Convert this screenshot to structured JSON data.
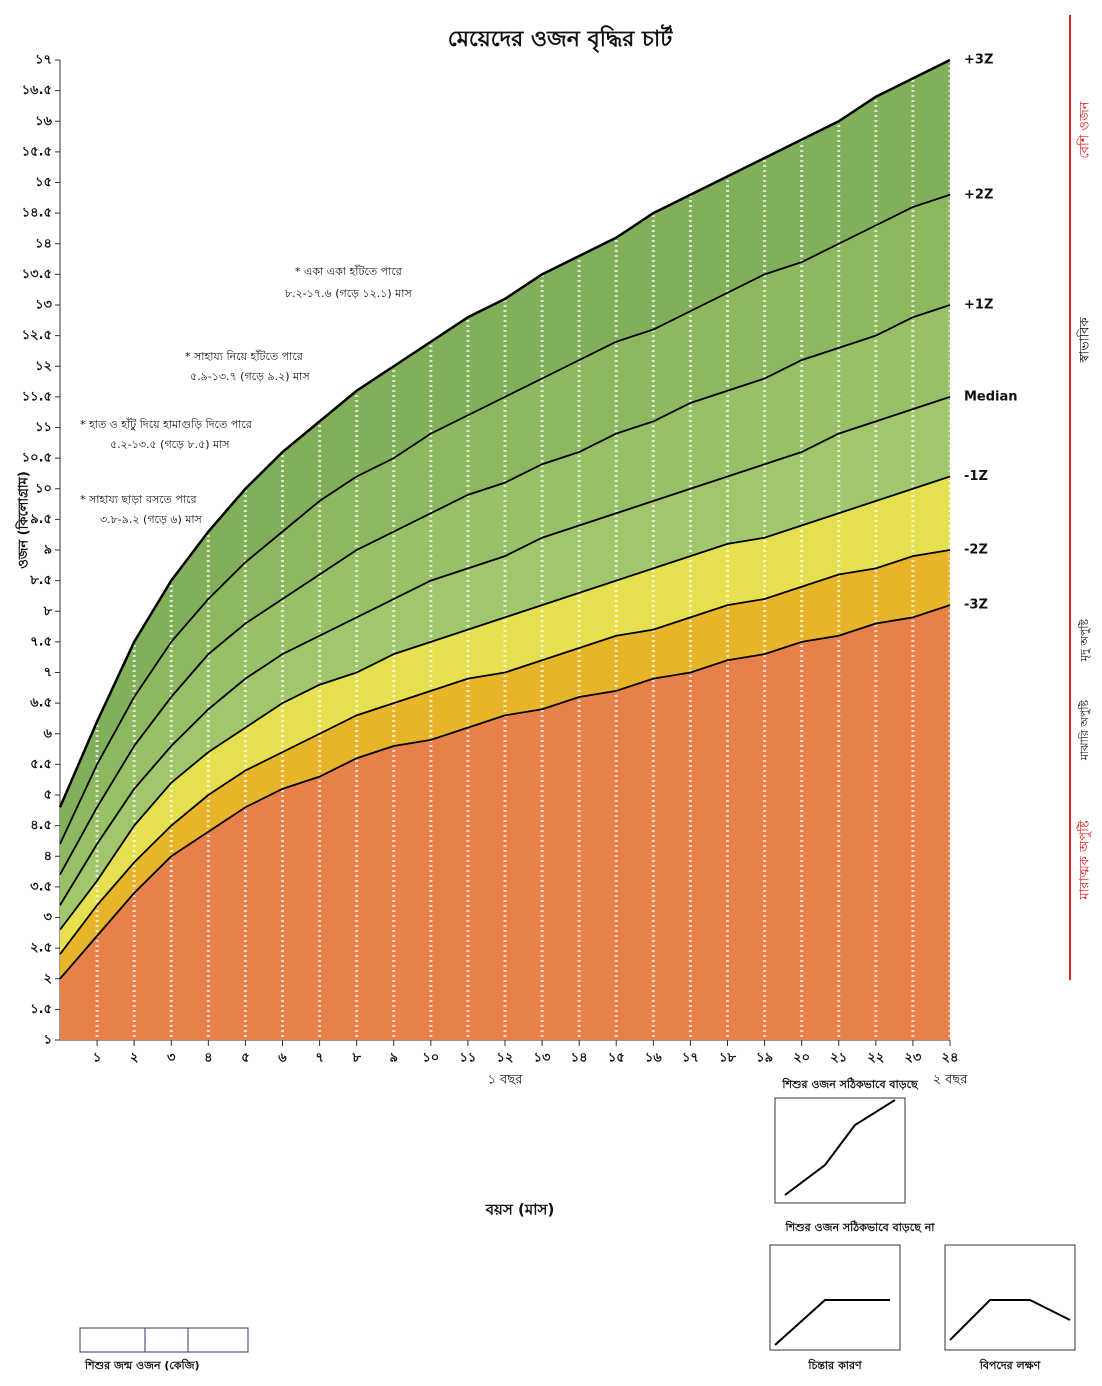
{
  "chart_data": {
    "type": "line",
    "title": "মেয়েদের ওজন বৃদ্ধির চার্ট",
    "x_label": "বয়স (মাস)",
    "y_label": "ওজন (কিলোগ্রাম)",
    "x": [
      0,
      1,
      2,
      3,
      4,
      5,
      6,
      7,
      8,
      9,
      10,
      11,
      12,
      13,
      14,
      15,
      16,
      17,
      18,
      19,
      20,
      21,
      22,
      23,
      24
    ],
    "xlim": [
      0,
      24
    ],
    "ylim": [
      1,
      17
    ],
    "xticks": [
      {
        "value": 1,
        "label": "১"
      },
      {
        "value": 2,
        "label": "২"
      },
      {
        "value": 3,
        "label": "৩"
      },
      {
        "value": 4,
        "label": "৪"
      },
      {
        "value": 5,
        "label": "৫"
      },
      {
        "value": 6,
        "label": "৬"
      },
      {
        "value": 7,
        "label": "৭"
      },
      {
        "value": 8,
        "label": "৮"
      },
      {
        "value": 9,
        "label": "৯"
      },
      {
        "value": 10,
        "label": "১০"
      },
      {
        "value": 11,
        "label": "১১"
      },
      {
        "value": 12,
        "label": "১২"
      },
      {
        "value": 13,
        "label": "১৩"
      },
      {
        "value": 14,
        "label": "১৪"
      },
      {
        "value": 15,
        "label": "১৫"
      },
      {
        "value": 16,
        "label": "১৬"
      },
      {
        "value": 17,
        "label": "১৭"
      },
      {
        "value": 18,
        "label": "১৮"
      },
      {
        "value": 19,
        "label": "১৯"
      },
      {
        "value": 20,
        "label": "২০"
      },
      {
        "value": 21,
        "label": "২১"
      },
      {
        "value": 22,
        "label": "২২"
      },
      {
        "value": 23,
        "label": "২৩"
      },
      {
        "value": 24,
        "label": "২৪"
      }
    ],
    "yticks": [
      {
        "value": 1,
        "label": "১"
      },
      {
        "value": 1.5,
        "label": "১.৫"
      },
      {
        "value": 2,
        "label": "২"
      },
      {
        "value": 2.5,
        "label": "২.৫"
      },
      {
        "value": 3,
        "label": "৩"
      },
      {
        "value": 3.5,
        "label": "৩.৫"
      },
      {
        "value": 4,
        "label": "৪"
      },
      {
        "value": 4.5,
        "label": "৪.৫"
      },
      {
        "value": 5,
        "label": "৫"
      },
      {
        "value": 5.5,
        "label": "৫.৫"
      },
      {
        "value": 6,
        "label": "৬"
      },
      {
        "value": 6.5,
        "label": "৬.৫"
      },
      {
        "value": 7,
        "label": "৭"
      },
      {
        "value": 7.5,
        "label": "৭.৫"
      },
      {
        "value": 8,
        "label": "৮"
      },
      {
        "value": 8.5,
        "label": "৮.৫"
      },
      {
        "value": 9,
        "label": "৯"
      },
      {
        "value": 9.5,
        "label": "৯.৫"
      },
      {
        "value": 10,
        "label": "১০"
      },
      {
        "value": 10.5,
        "label": "১০.৫"
      },
      {
        "value": 11,
        "label": "১১"
      },
      {
        "value": 11.5,
        "label": "১১.৫"
      },
      {
        "value": 12,
        "label": "১২"
      },
      {
        "value": 12.5,
        "label": "১২.৫"
      },
      {
        "value": 13,
        "label": "১৩"
      },
      {
        "value": 13.5,
        "label": "১৩.৫"
      },
      {
        "value": 14,
        "label": "১৪"
      },
      {
        "value": 14.5,
        "label": "১৪.৫"
      },
      {
        "value": 15,
        "label": "১৫"
      },
      {
        "value": 15.5,
        "label": "১৫.৫"
      },
      {
        "value": 16,
        "label": "১৬"
      },
      {
        "value": 16.5,
        "label": "১৬.৫"
      },
      {
        "value": 17,
        "label": "১৭"
      }
    ],
    "grid": true,
    "below_color": "#e8804a",
    "series": [
      {
        "name": "-3Z",
        "color": "#000000",
        "fill": "#e8b42a",
        "values": [
          2.0,
          2.7,
          3.4,
          4.0,
          4.4,
          4.8,
          5.1,
          5.3,
          5.6,
          5.8,
          5.9,
          6.1,
          6.3,
          6.4,
          6.6,
          6.7,
          6.9,
          7.0,
          7.2,
          7.3,
          7.5,
          7.6,
          7.8,
          7.9,
          8.1
        ]
      },
      {
        "name": "-2Z",
        "color": "#000000",
        "fill": "#e6e050",
        "values": [
          2.4,
          3.2,
          3.9,
          4.5,
          5.0,
          5.4,
          5.7,
          6.0,
          6.3,
          6.5,
          6.7,
          6.9,
          7.0,
          7.2,
          7.4,
          7.6,
          7.7,
          7.9,
          8.1,
          8.2,
          8.4,
          8.6,
          8.7,
          8.9,
          9.0
        ]
      },
      {
        "name": "-1Z",
        "color": "#000000",
        "fill": "#a2c66c",
        "values": [
          2.8,
          3.6,
          4.5,
          5.2,
          5.7,
          6.1,
          6.5,
          6.8,
          7.0,
          7.3,
          7.5,
          7.7,
          7.9,
          8.1,
          8.3,
          8.5,
          8.7,
          8.9,
          9.1,
          9.2,
          9.4,
          9.6,
          9.8,
          10.0,
          10.2
        ]
      },
      {
        "name": "Median",
        "color": "#000000",
        "fill": "#98c066",
        "values": [
          3.2,
          4.2,
          5.1,
          5.8,
          6.4,
          6.9,
          7.3,
          7.6,
          7.9,
          8.2,
          8.5,
          8.7,
          8.9,
          9.2,
          9.4,
          9.6,
          9.8,
          10.0,
          10.2,
          10.4,
          10.6,
          10.9,
          11.1,
          11.3,
          11.5
        ]
      },
      {
        "name": "+1Z",
        "color": "#000000",
        "fill": "#8eb860",
        "values": [
          3.7,
          4.8,
          5.8,
          6.6,
          7.3,
          7.8,
          8.2,
          8.6,
          9.0,
          9.3,
          9.6,
          9.9,
          10.1,
          10.4,
          10.6,
          10.9,
          11.1,
          11.4,
          11.6,
          11.8,
          12.1,
          12.3,
          12.5,
          12.8,
          13.0
        ]
      },
      {
        "name": "+2Z",
        "color": "#000000",
        "fill": "#82b05a",
        "values": [
          4.2,
          5.5,
          6.6,
          7.5,
          8.2,
          8.8,
          9.3,
          9.8,
          10.2,
          10.5,
          10.9,
          11.2,
          11.5,
          11.8,
          12.1,
          12.4,
          12.6,
          12.9,
          13.2,
          13.5,
          13.7,
          14.0,
          14.3,
          14.6,
          14.8
        ]
      },
      {
        "name": "+3Z",
        "color": "#000000",
        "fill": "#ffffff",
        "values": [
          4.8,
          6.2,
          7.5,
          8.5,
          9.3,
          10.0,
          10.6,
          11.1,
          11.6,
          12.0,
          12.4,
          12.8,
          13.1,
          13.5,
          13.8,
          14.1,
          14.5,
          14.8,
          15.1,
          15.4,
          15.7,
          16.0,
          16.4,
          16.7,
          17.0
        ]
      }
    ],
    "milestones": [
      {
        "text": "* সাহায্য ছাড়া বসতে পারে",
        "range": "৩.৮-৯.২ (গড়ে ৬) মাস"
      },
      {
        "text": "* হাত ও হাঁটু দিয়ে হামাগুড়ি দিতে পারে",
        "range": "৫.২-১৩.৫ (গড়ে ৮.৫) মাস"
      },
      {
        "text": "* সাহায্য নিয়ে হাঁটতে পারে",
        "range": "৫.৯-১৩.৭ (গড়ে ৯.২) মাস"
      },
      {
        "text": "* একা একা হাঁটতে পারে",
        "range": "৮.২-১৭.৬ (গড়ে ১২.১) মাস"
      }
    ],
    "zones": [
      "বেশি ওজন",
      "স্বাভাবিক",
      "মৃদু অপুষ্টি",
      "মাঝারি অপুষ্টি",
      "মারাত্মক অপুষ্টি"
    ],
    "year_labels": [
      "১ বছর",
      "২ বছর"
    ],
    "birth_weight": "শিশুর জন্ম ওজন (কেজি)",
    "insets": [
      {
        "title": "শিশুর ওজন সঠিকভাবে বাড়ছে"
      },
      {
        "title": "শিশুর ওজন সঠিকভাবে বাড়ছে না",
        "captions": [
          "চিন্তার কারণ",
          "বিপদের লক্ষণ"
        ]
      }
    ]
  }
}
